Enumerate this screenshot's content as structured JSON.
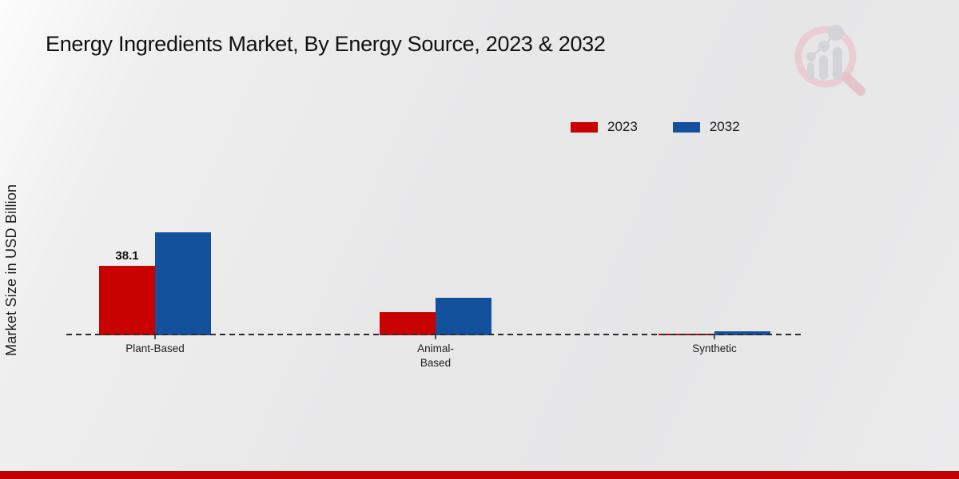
{
  "title": "Energy Ingredients Market, By Energy Source, 2023 & 2032",
  "ylabel": "Market Size in USD Billion",
  "legend": {
    "items": [
      {
        "label": "2023",
        "color": "#c80101"
      },
      {
        "label": "2032",
        "color": "#14519c"
      }
    ]
  },
  "chart_data": {
    "type": "bar",
    "categories": [
      "Plant-Based",
      "Animal-Based",
      "Synthetic"
    ],
    "category_display_lines": [
      [
        "Plant-Based"
      ],
      [
        "Animal-",
        "Based"
      ],
      [
        "Synthetic"
      ]
    ],
    "series": [
      {
        "name": "2023",
        "color": "#c80101",
        "values": [
          38.1,
          12.7,
          0.9
        ]
      },
      {
        "name": "2032",
        "color": "#14519c",
        "values": [
          56.5,
          20.6,
          2.1
        ]
      }
    ],
    "bar_value_labels": [
      {
        "series_index": 0,
        "category_index": 0,
        "text": "38.1"
      }
    ],
    "title": "Energy Ingredients Market, By Energy Source, 2023 & 2032",
    "xlabel": "",
    "ylabel": "Market Size in USD Billion",
    "ylim": [
      0,
      65
    ],
    "grid": false,
    "legend_position": "top-right",
    "baseline_style": "dashed"
  },
  "branding": {
    "logo_name": "market-research-magnifier-logo",
    "footer_bar_color": "#c00101",
    "logo_ring_color": "#e9cdd2",
    "logo_bar_color": "#d3d4d8"
  }
}
